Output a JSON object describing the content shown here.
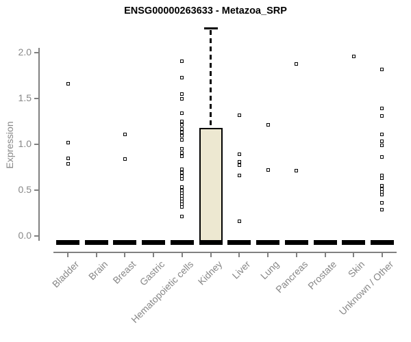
{
  "chart_data": {
    "type": "boxplot",
    "title": "ENSG00000263633 - Metazoa_SRP",
    "ylabel": "Expression",
    "xlabel": "",
    "yticks": [
      0.0,
      0.5,
      1.0,
      1.5,
      2.0
    ],
    "ylim": [
      -0.1,
      2.35
    ],
    "grid": false,
    "legend": false,
    "point_style": "open-square",
    "colors": {
      "box_fill": "#ede8d1",
      "stroke": "#000000",
      "axis": "#808080",
      "text": "#878787",
      "title": "#000000"
    },
    "categories": [
      "Bladder",
      "Brain",
      "Breast",
      "Gastric",
      "Hematopoietic cells",
      "Kidney",
      "Liver",
      "Lung",
      "Pancreas",
      "Prostate",
      "Skin",
      "Unknown / Other"
    ],
    "series": [
      {
        "category": "Bladder",
        "box": {
          "q1": 0,
          "median": 0,
          "q3": 0,
          "whisker_low": 0,
          "whisker_high": 0
        },
        "points": [
          1.66,
          1.02,
          0.85,
          0.79
        ]
      },
      {
        "category": "Brain",
        "box": {
          "q1": 0,
          "median": 0,
          "q3": 0,
          "whisker_low": 0,
          "whisker_high": 0
        },
        "points": []
      },
      {
        "category": "Breast",
        "box": {
          "q1": 0,
          "median": 0,
          "q3": 0,
          "whisker_low": 0,
          "whisker_high": 0
        },
        "points": [
          1.11,
          0.84
        ]
      },
      {
        "category": "Gastric",
        "box": {
          "q1": 0,
          "median": 0,
          "q3": 0,
          "whisker_low": 0,
          "whisker_high": 0
        },
        "points": []
      },
      {
        "category": "Hematopoietic cells",
        "box": {
          "q1": 0,
          "median": 0,
          "q3": 0,
          "whisker_low": 0,
          "whisker_high": 0
        },
        "points": [
          1.91,
          1.73,
          1.55,
          1.5,
          1.34,
          1.25,
          1.21,
          1.17,
          1.13,
          1.09,
          1.05,
          0.95,
          0.91,
          0.87,
          0.73,
          0.69,
          0.65,
          0.62,
          0.53,
          0.5,
          0.47,
          0.44,
          0.41,
          0.38,
          0.35,
          0.32,
          0.21
        ]
      },
      {
        "category": "Kidney",
        "box": {
          "q1": 0,
          "median": 0,
          "q3": 1.18,
          "whisker_low": 0,
          "whisker_high": 2.27
        },
        "points": []
      },
      {
        "category": "Liver",
        "box": {
          "q1": 0,
          "median": 0,
          "q3": 0,
          "whisker_low": 0,
          "whisker_high": 0
        },
        "points": [
          1.32,
          0.89,
          0.81,
          0.77,
          0.66,
          0.16
        ]
      },
      {
        "category": "Lung",
        "box": {
          "q1": 0,
          "median": 0,
          "q3": 0,
          "whisker_low": 0,
          "whisker_high": 0
        },
        "points": [
          1.21,
          0.72
        ]
      },
      {
        "category": "Pancreas",
        "box": {
          "q1": 0,
          "median": 0,
          "q3": 0,
          "whisker_low": 0,
          "whisker_high": 0
        },
        "points": [
          1.88,
          0.71
        ]
      },
      {
        "category": "Prostate",
        "box": {
          "q1": 0,
          "median": 0,
          "q3": 0,
          "whisker_low": 0,
          "whisker_high": 0
        },
        "points": []
      },
      {
        "category": "Skin",
        "box": {
          "q1": 0,
          "median": 0,
          "q3": 0,
          "whisker_low": 0,
          "whisker_high": 0
        },
        "points": [
          1.96
        ]
      },
      {
        "category": "Unknown / Other",
        "box": {
          "q1": 0,
          "median": 0,
          "q3": 0,
          "whisker_low": 0,
          "whisker_high": 0
        },
        "points": [
          1.82,
          1.39,
          1.31,
          1.11,
          1.03,
          0.99,
          0.86,
          0.66,
          0.63,
          0.55,
          0.51,
          0.48,
          0.45,
          0.36,
          0.29
        ]
      }
    ]
  }
}
